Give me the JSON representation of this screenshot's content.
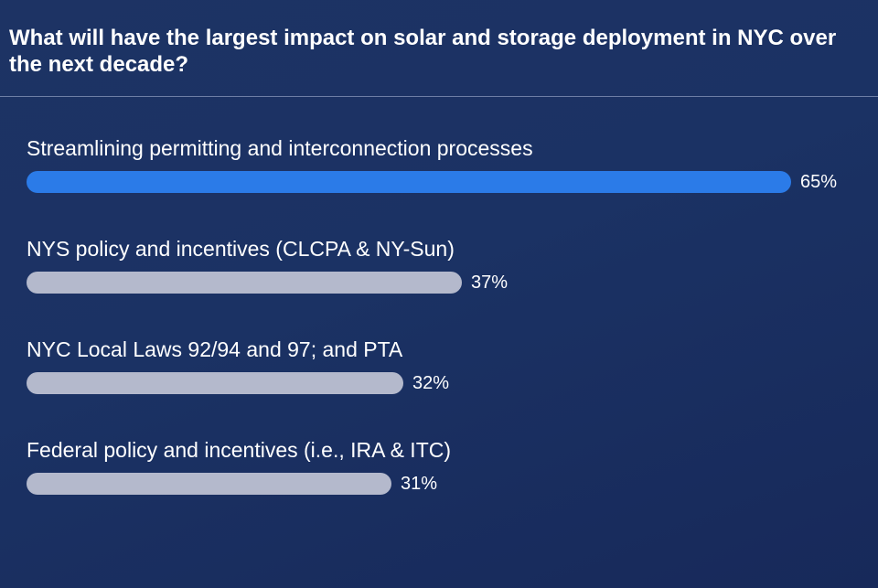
{
  "poll": {
    "question": "What will have the largest impact on solar and storage deployment in NYC over the next decade?",
    "colors": {
      "background": "#1b3264",
      "leading_bar": "#2b7be8",
      "other_bar": "#b4b9cc",
      "text": "#ffffff"
    },
    "options": [
      {
        "label": "Streamlining permitting and interconnection processes",
        "percent": 65,
        "percent_text": "65%",
        "leading": true
      },
      {
        "label": "NYS policy and incentives (CLCPA & NY-Sun)",
        "percent": 37,
        "percent_text": "37%",
        "leading": false
      },
      {
        "label": "NYC Local Laws 92/94 and 97; and PTA",
        "percent": 32,
        "percent_text": "32%",
        "leading": false
      },
      {
        "label": "Federal policy and incentives (i.e., IRA & ITC)",
        "percent": 31,
        "percent_text": "31%",
        "leading": false
      }
    ]
  }
}
